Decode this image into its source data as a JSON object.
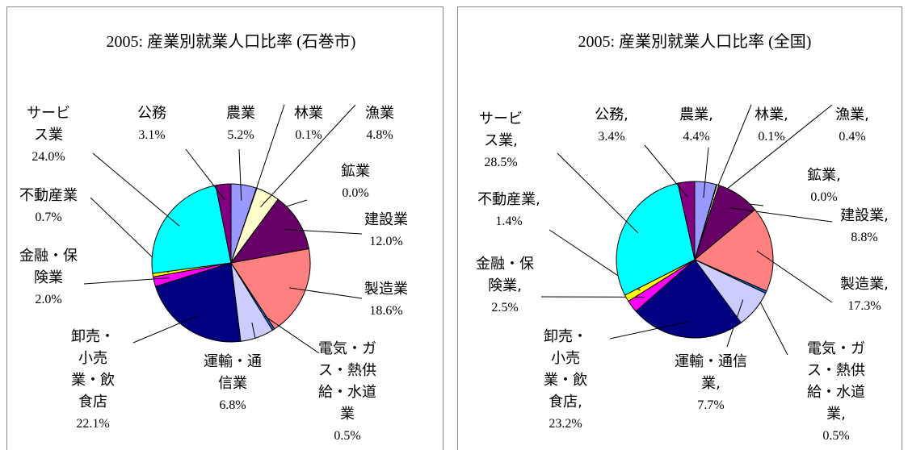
{
  "chart_data": [
    {
      "type": "pie",
      "title": "2005: 産業別就業人口比率 (石巻市)",
      "categories": [
        "農業",
        "林業",
        "漁業",
        "鉱業",
        "建設業",
        "製造業",
        "電気・ガス・熱供給・水道業",
        "運輸・通信業",
        "卸売・小売業・飲食店",
        "金融・保険業",
        "不動産業",
        "サービス業",
        "公務"
      ],
      "values": [
        5.2,
        0.1,
        4.8,
        0,
        12,
        18.6,
        0.5,
        6.8,
        22.1,
        2,
        0.7,
        24,
        3.1
      ],
      "value_labels": [
        "5.2%",
        "0.1%",
        "4.8%",
        "0.0%",
        "12.0%",
        "18.6%",
        "0.5%",
        "6.8%",
        "22.1%",
        "2.0%",
        "0.7%",
        "24.0%",
        "3.1%"
      ],
      "colors": [
        "#9999ff",
        "#993366",
        "#ffffcc",
        "#ccffff",
        "#660066",
        "#ff8080",
        "#0066cc",
        "#ccccff",
        "#000080",
        "#ff00ff",
        "#ffff00",
        "#00ffff",
        "#800080"
      ]
    },
    {
      "type": "pie",
      "title": "2005: 産業別就業人口比率 (全国)",
      "categories": [
        "農業,",
        "林業,",
        "漁業,",
        "鉱業,",
        "建設業,",
        "製造業,",
        "電気・ガス・熱供給・水道業,",
        "運輸・通信業,",
        "卸売・小売業・飲食店,",
        "金融・保険業,",
        "不動産業,",
        "サービス業,",
        "公務,"
      ],
      "values": [
        4.4,
        0.1,
        0.4,
        0,
        8.8,
        17.3,
        0.5,
        7.7,
        23.2,
        2.5,
        1.4,
        28.5,
        3.4
      ],
      "value_labels": [
        "4.4%",
        "0.1%",
        "0.4%",
        "0.0%",
        "8.8%",
        "17.3%",
        "0.5%",
        "7.7%",
        "23.2%",
        "2.5%",
        "1.4%",
        "28.5%",
        "3.4%"
      ],
      "colors": [
        "#9999ff",
        "#993366",
        "#ffffcc",
        "#ccffff",
        "#660066",
        "#ff8080",
        "#0066cc",
        "#ccccff",
        "#000080",
        "#ff00ff",
        "#ffff00",
        "#00ffff",
        "#800080"
      ]
    }
  ]
}
